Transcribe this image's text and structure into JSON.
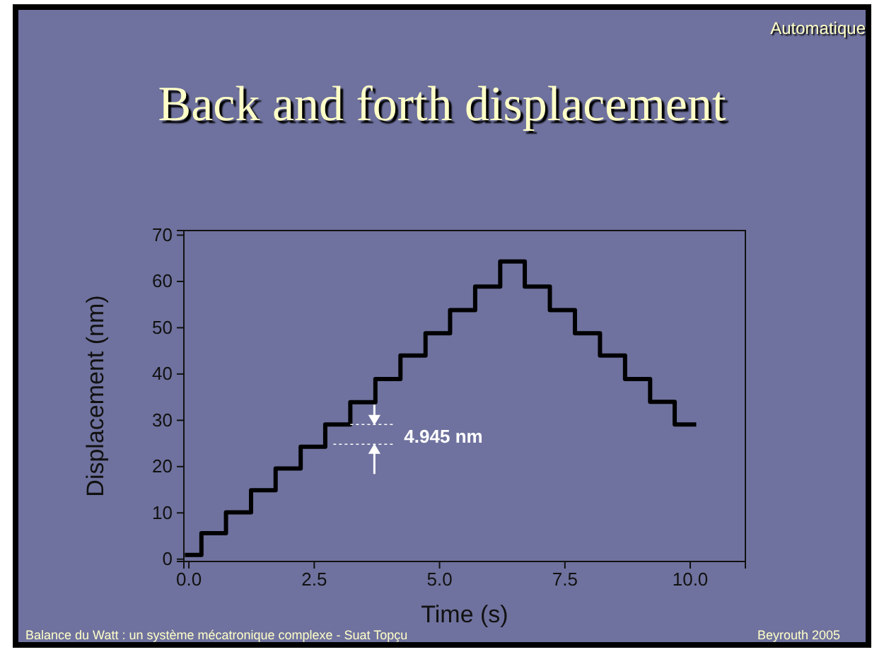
{
  "chart_data": {
    "type": "step",
    "title": "Back and forth displacement",
    "subtitle": "Automatique",
    "xlabel": "Time (s)",
    "ylabel": "Displacement (nm)",
    "x": [
      -0.08,
      0.25,
      0.74,
      1.24,
      1.73,
      2.23,
      2.72,
      3.22,
      3.72,
      4.22,
      4.72,
      5.21,
      5.71,
      6.21,
      6.7,
      7.2,
      7.7,
      8.2,
      8.7,
      9.2,
      9.69,
      10.12
    ],
    "values": [
      0.9,
      5.6,
      10.1,
      14.9,
      19.6,
      24.3,
      29.1,
      33.9,
      38.9,
      44.0,
      48.8,
      53.8,
      58.9,
      64.3,
      58.9,
      53.8,
      48.8,
      44.0,
      38.9,
      34.0,
      29.1,
      29.1
    ],
    "color": "#000000",
    "xlim": [
      -0.1,
      11.1
    ],
    "ylim": [
      -0.5,
      71
    ],
    "xticks": [
      {
        "value": 0,
        "label": "0.0"
      },
      {
        "value": 2.5,
        "label": "2.5"
      },
      {
        "value": 5,
        "label": "5.0"
      },
      {
        "value": 7.5,
        "label": "7.5"
      },
      {
        "value": 10,
        "label": "10.0"
      }
    ],
    "yticks": [
      0,
      10,
      20,
      30,
      40,
      50,
      60,
      70
    ],
    "grid": false,
    "annotations": [
      {
        "text": "4.945 nm",
        "x": 3.22,
        "y": 29.1
      },
      "Balance du Watt : un système mécatronique complexe  -   Suat Topçu",
      "Beyrouth 2005"
    ]
  }
}
